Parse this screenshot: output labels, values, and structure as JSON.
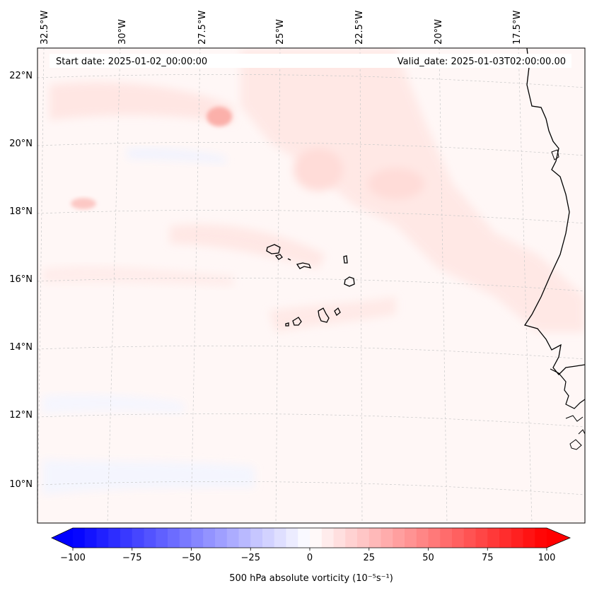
{
  "map": {
    "start_label": "Start date: 2025-01-02_00:00:00",
    "valid_label": "Valid_date: 2025-01-03T02:00:00.00",
    "lon_labels": [
      "32.5°W",
      "30°W",
      "27.5°W",
      "25°W",
      "22.5°W",
      "20°W",
      "17.5°W"
    ],
    "lat_labels": [
      "22°N",
      "20°N",
      "18°N",
      "16°N",
      "14°N",
      "12°N",
      "10°N"
    ],
    "field": "500 hPa absolute vorticity",
    "colors": {
      "positive": "#ff0000",
      "negative": "#0000ff",
      "coast": "#000000",
      "grid": "#c8c8c8"
    }
  },
  "colorbar": {
    "min": -100,
    "max": 100,
    "tick_values": [
      -100,
      -75,
      -50,
      -25,
      0,
      25,
      50,
      75,
      100
    ],
    "tick_labels": [
      "−100",
      "−75",
      "−50",
      "−25",
      "0",
      "25",
      "50",
      "75",
      "100"
    ],
    "label": "500 hPa absolute vorticity (10⁻⁵s⁻¹)"
  }
}
